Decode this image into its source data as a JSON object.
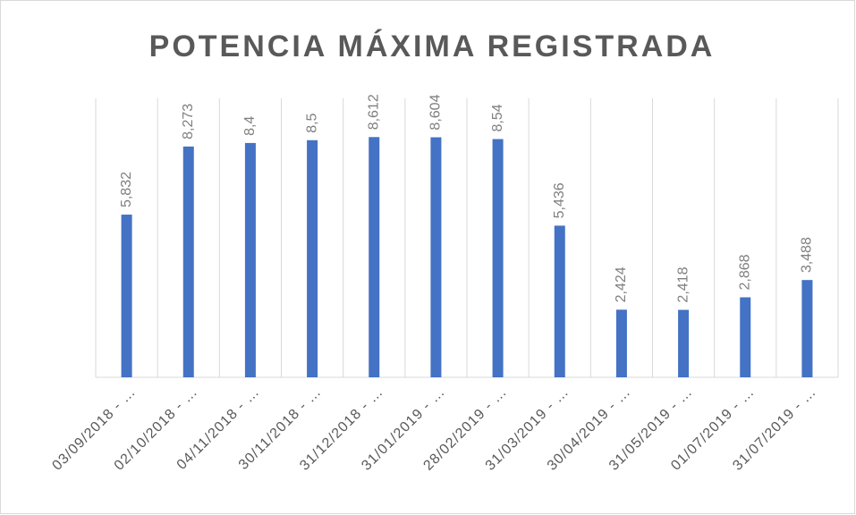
{
  "chart_data": {
    "type": "bar",
    "title": "POTENCIA MÁXIMA REGISTRADA",
    "categories": [
      "03/09/2018 - …",
      "02/10/2018 - …",
      "04/11/2018 - …",
      "30/11/2018 - …",
      "31/12/2018 - …",
      "31/01/2019 - …",
      "28/02/2019 - …",
      "31/03/2019 - …",
      "30/04/2019 - …",
      "31/05/2019 - …",
      "01/07/2019 - …",
      "31/07/2019 - …"
    ],
    "values": [
      5.832,
      8.273,
      8.4,
      8.5,
      8.612,
      8.604,
      8.54,
      5.436,
      2.424,
      2.418,
      2.868,
      3.488
    ],
    "value_labels": [
      "5,832",
      "8,273",
      "8,4",
      "8,5",
      "8,612",
      "8,604",
      "8,54",
      "5,436",
      "2,424",
      "2,418",
      "2,868",
      "3,488"
    ],
    "color": "#4472c4",
    "ylim": [
      0,
      10
    ]
  }
}
